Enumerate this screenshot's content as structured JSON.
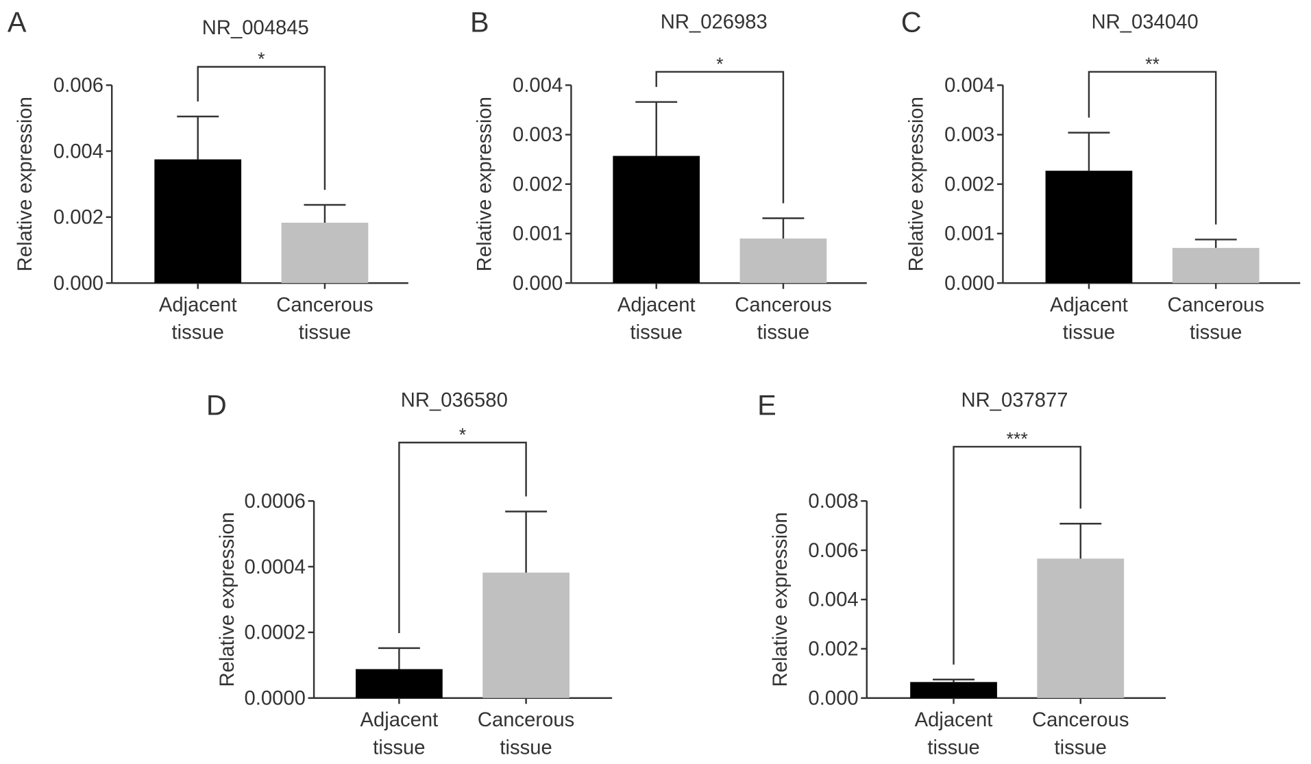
{
  "chart_data": [
    {
      "panel": "A",
      "type": "bar",
      "title": "NR_004845",
      "ylabel": "Relative expression",
      "categories": [
        [
          "Adjacent",
          "tissue"
        ],
        [
          "Cancerous",
          "tissue"
        ]
      ],
      "values": [
        0.00375,
        0.00183
      ],
      "errors_upper": [
        0.00505,
        0.00237
      ],
      "ylim": [
        0,
        0.006
      ],
      "yticks": [
        "0.000",
        "0.002",
        "0.004",
        "0.006"
      ],
      "significance": "*",
      "colors": [
        "#000000",
        "#c0c0c0"
      ]
    },
    {
      "panel": "B",
      "type": "bar",
      "title": "NR_026983",
      "ylabel": "Relative expression",
      "categories": [
        [
          "Adjacent",
          "tissue"
        ],
        [
          "Cancerous",
          "tissue"
        ]
      ],
      "values": [
        0.00257,
        0.0009
      ],
      "errors_upper": [
        0.00366,
        0.00131
      ],
      "ylim": [
        0,
        0.004
      ],
      "yticks": [
        "0.000",
        "0.001",
        "0.002",
        "0.003",
        "0.004"
      ],
      "significance": "*",
      "colors": [
        "#000000",
        "#c0c0c0"
      ]
    },
    {
      "panel": "C",
      "type": "bar",
      "title": "NR_034040",
      "ylabel": "Relative expression",
      "categories": [
        [
          "Adjacent",
          "tissue"
        ],
        [
          "Cancerous",
          "tissue"
        ]
      ],
      "values": [
        0.00227,
        0.00071
      ],
      "errors_upper": [
        0.00304,
        0.00088
      ],
      "ylim": [
        0,
        0.004
      ],
      "yticks": [
        "0.000",
        "0.001",
        "0.002",
        "0.003",
        "0.004"
      ],
      "significance": "**",
      "colors": [
        "#000000",
        "#c0c0c0"
      ]
    },
    {
      "panel": "D",
      "type": "bar",
      "title": "NR_036580",
      "ylabel": "Relative expression",
      "categories": [
        [
          "Adjacent",
          "tissue"
        ],
        [
          "Cancerous",
          "tissue"
        ]
      ],
      "values": [
        8.8e-05,
        0.000382
      ],
      "errors_upper": [
        0.000152,
        0.000568
      ],
      "ylim": [
        0,
        0.0006
      ],
      "yticks": [
        "0.0000",
        "0.0002",
        "0.0004",
        "0.0006"
      ],
      "significance": "*",
      "colors": [
        "#000000",
        "#c0c0c0"
      ]
    },
    {
      "panel": "E",
      "type": "bar",
      "title": "NR_037877",
      "ylabel": "Relative expression",
      "categories": [
        [
          "Adjacent",
          "tissue"
        ],
        [
          "Cancerous",
          "tissue"
        ]
      ],
      "values": [
        0.00065,
        0.00566
      ],
      "errors_upper": [
        0.00075,
        0.00708
      ],
      "ylim": [
        0,
        0.008
      ],
      "yticks": [
        "0.000",
        "0.002",
        "0.004",
        "0.006",
        "0.008"
      ],
      "significance": "***",
      "colors": [
        "#000000",
        "#c0c0c0"
      ]
    }
  ]
}
